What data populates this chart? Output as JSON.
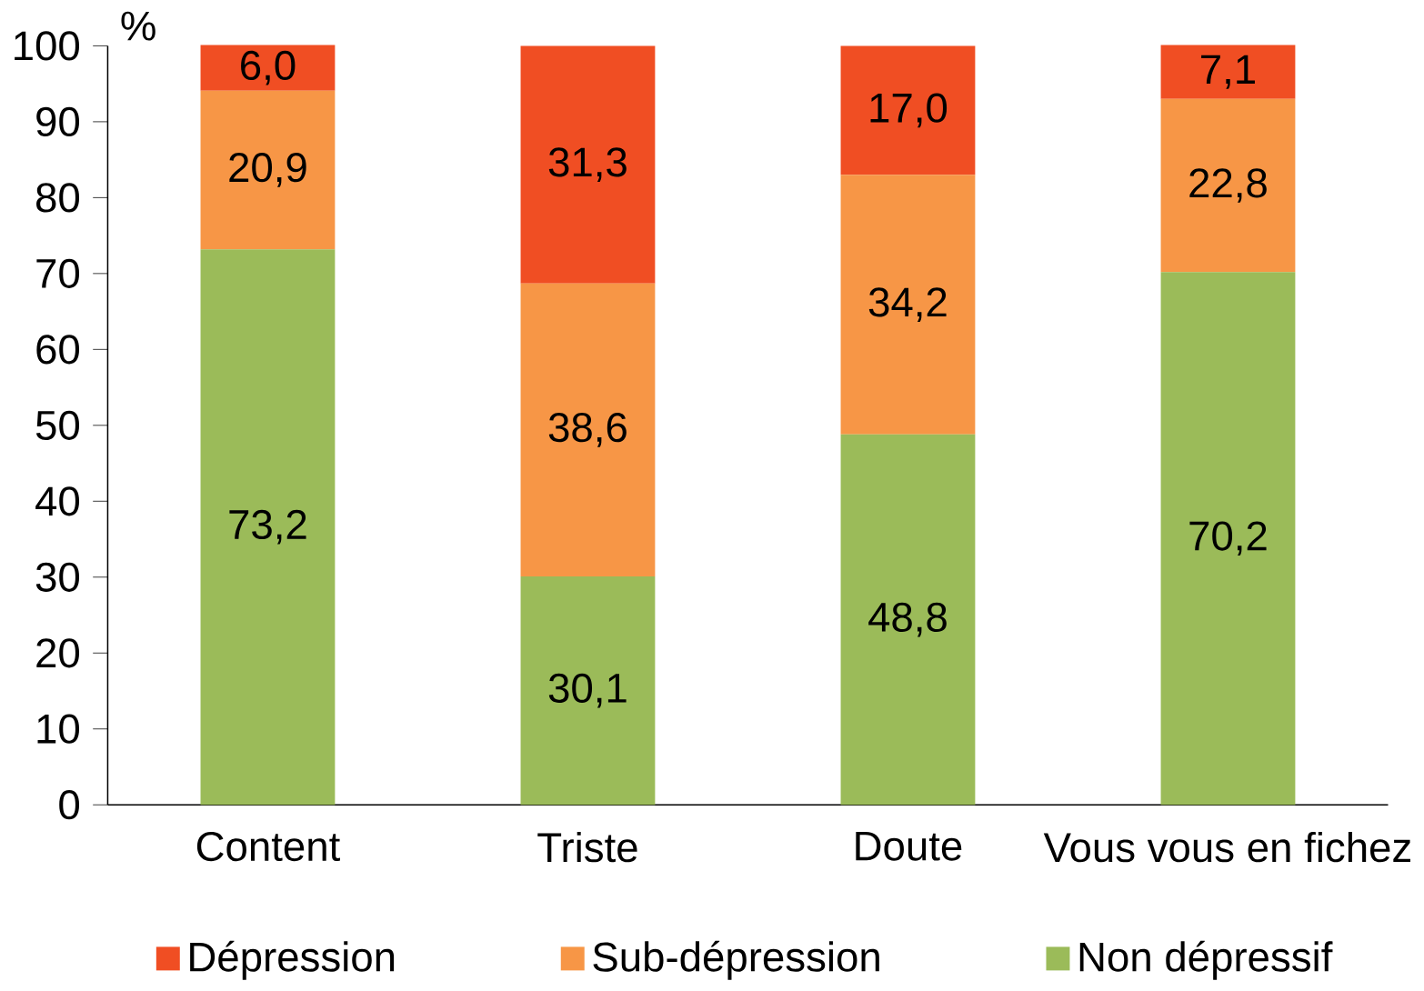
{
  "chart_data": {
    "type": "bar",
    "stacked": true,
    "ylabel": "%",
    "categories": [
      "Content",
      "Triste",
      "Doute",
      "Vous vous en fichez"
    ],
    "series": [
      {
        "name": "Non dépressif",
        "color": "#9bbb59",
        "values": [
          73.2,
          30.1,
          48.8,
          70.2
        ],
        "value_labels": [
          "73,2",
          "30,1",
          "48,8",
          "70,2"
        ]
      },
      {
        "name": "Sub-dépression",
        "color": "#f79646",
        "values": [
          20.9,
          38.6,
          34.2,
          22.8
        ],
        "value_labels": [
          "20,9",
          "38,6",
          "34,2",
          "22,8"
        ]
      },
      {
        "name": "Dépression",
        "color": "#f04e23",
        "values": [
          6.0,
          31.3,
          17.0,
          7.1
        ],
        "value_labels": [
          "6,0",
          "31,3",
          "17,0",
          "7,1"
        ]
      }
    ],
    "ylim": [
      0,
      100
    ],
    "yticks": [
      0,
      10,
      20,
      30,
      40,
      50,
      60,
      70,
      80,
      90,
      100
    ],
    "grid": false,
    "legend": "bottom"
  }
}
